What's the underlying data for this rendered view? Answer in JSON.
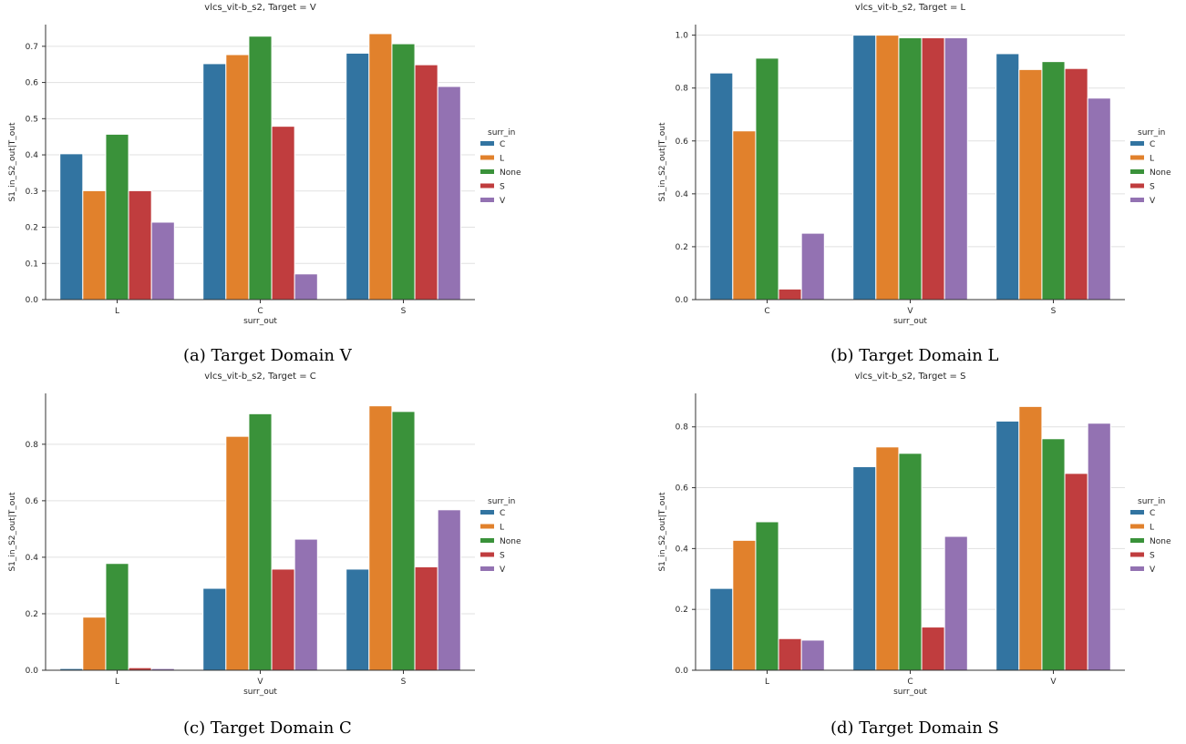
{
  "captions": [
    "(a) Target Domain V",
    "(b) Target Domain L",
    "(c) Target Domain C",
    "(d) Target Domain S"
  ],
  "palette": {
    "C": "#3274a1",
    "L": "#e1812c",
    "None": "#3a923a",
    "S": "#c03d3e",
    "V": "#9372b2"
  },
  "chart_data": [
    {
      "type": "bar",
      "title": "vlcs_vit-b_s2, Target = V",
      "xlabel": "surr_out",
      "ylabel": "S1_in_S2_out|T_out",
      "categories": [
        "L",
        "C",
        "S"
      ],
      "ylim": [
        0,
        0.76
      ],
      "yticks": [
        "0.0",
        "0.1",
        "0.2",
        "0.3",
        "0.4",
        "0.5",
        "0.6",
        "0.7"
      ],
      "legend_title": "surr_in",
      "legend_position": "right",
      "grid": "horizontal",
      "series": [
        {
          "name": "C",
          "values": [
            0.403,
            0.652,
            0.681
          ]
        },
        {
          "name": "L",
          "values": [
            0.301,
            0.677,
            0.735
          ]
        },
        {
          "name": "None",
          "values": [
            0.457,
            0.728,
            0.707
          ]
        },
        {
          "name": "S",
          "values": [
            0.301,
            0.479,
            0.649
          ]
        },
        {
          "name": "V",
          "values": [
            0.214,
            0.071,
            0.589
          ]
        }
      ]
    },
    {
      "type": "bar",
      "title": "vlcs_vit-b_s2, Target = L",
      "xlabel": "surr_out",
      "ylabel": "S1_in_S2_out|T_out",
      "categories": [
        "C",
        "V",
        "S"
      ],
      "ylim": [
        0,
        1.04
      ],
      "yticks": [
        "0.0",
        "0.2",
        "0.4",
        "0.6",
        "0.8",
        "1.0"
      ],
      "legend_title": "surr_in",
      "legend_position": "right",
      "grid": "horizontal",
      "series": [
        {
          "name": "C",
          "values": [
            0.857,
            1.0,
            0.93
          ]
        },
        {
          "name": "L",
          "values": [
            0.638,
            1.0,
            0.87
          ]
        },
        {
          "name": "None",
          "values": [
            0.913,
            0.99,
            0.9
          ]
        },
        {
          "name": "S",
          "values": [
            0.04,
            0.99,
            0.874
          ]
        },
        {
          "name": "V",
          "values": [
            0.251,
            0.99,
            0.762
          ]
        }
      ]
    },
    {
      "type": "bar",
      "title": "vlcs_vit-b_s2, Target = C",
      "xlabel": "surr_out",
      "ylabel": "S1_in_S2_out|T_out",
      "categories": [
        "L",
        "V",
        "S"
      ],
      "ylim": [
        0,
        0.98
      ],
      "yticks": [
        "0.0",
        "0.2",
        "0.4",
        "0.6",
        "0.8"
      ],
      "legend_title": "surr_in",
      "legend_position": "right",
      "grid": "horizontal",
      "series": [
        {
          "name": "C",
          "values": [
            0.006,
            0.29,
            0.358
          ]
        },
        {
          "name": "L",
          "values": [
            0.188,
            0.828,
            0.936
          ]
        },
        {
          "name": "None",
          "values": [
            0.378,
            0.908,
            0.916
          ]
        },
        {
          "name": "S",
          "values": [
            0.009,
            0.358,
            0.366
          ]
        },
        {
          "name": "V",
          "values": [
            0.006,
            0.464,
            0.568
          ]
        }
      ]
    },
    {
      "type": "bar",
      "title": "vlcs_vit-b_s2, Target = S",
      "xlabel": "surr_out",
      "ylabel": "S1_in_S2_out|T_out",
      "categories": [
        "L",
        "C",
        "V"
      ],
      "ylim": [
        0,
        0.91
      ],
      "yticks": [
        "0.0",
        "0.2",
        "0.4",
        "0.6",
        "0.8"
      ],
      "legend_title": "surr_in",
      "legend_position": "right",
      "grid": "horizontal",
      "series": [
        {
          "name": "C",
          "values": [
            0.269,
            0.669,
            0.819
          ]
        },
        {
          "name": "L",
          "values": [
            0.427,
            0.734,
            0.867
          ]
        },
        {
          "name": "None",
          "values": [
            0.488,
            0.713,
            0.761
          ]
        },
        {
          "name": "S",
          "values": [
            0.104,
            0.142,
            0.647
          ]
        },
        {
          "name": "V",
          "values": [
            0.099,
            0.44,
            0.812
          ]
        }
      ]
    }
  ]
}
